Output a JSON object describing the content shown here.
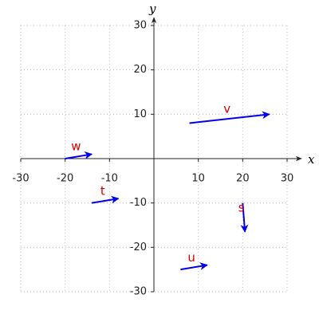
{
  "chart_data": {
    "type": "vector",
    "x_label": "x",
    "y_label": "y",
    "xlim": [
      -30,
      30
    ],
    "ylim": [
      -30,
      30
    ],
    "xticks": [
      -30,
      -20,
      -10,
      10,
      20,
      30
    ],
    "yticks": [
      -30,
      -20,
      -10,
      10,
      20,
      30
    ],
    "grid": true,
    "arrow_color": "#0000ee",
    "label_color": "#dd0000",
    "series": [
      {
        "name": "v",
        "x0": 8,
        "y0": 8,
        "x1": 26,
        "y1": 10
      },
      {
        "name": "w",
        "x0": -20,
        "y0": 0,
        "x1": -14,
        "y1": 1
      },
      {
        "name": "t",
        "x0": -14,
        "y0": -10,
        "x1": -8,
        "y1": -9
      },
      {
        "name": "s",
        "x0": 20,
        "y0": -10,
        "x1": 20.5,
        "y1": -16.5
      },
      {
        "name": "u",
        "x0": 6,
        "y0": -25,
        "x1": 12,
        "y1": -24
      }
    ]
  }
}
